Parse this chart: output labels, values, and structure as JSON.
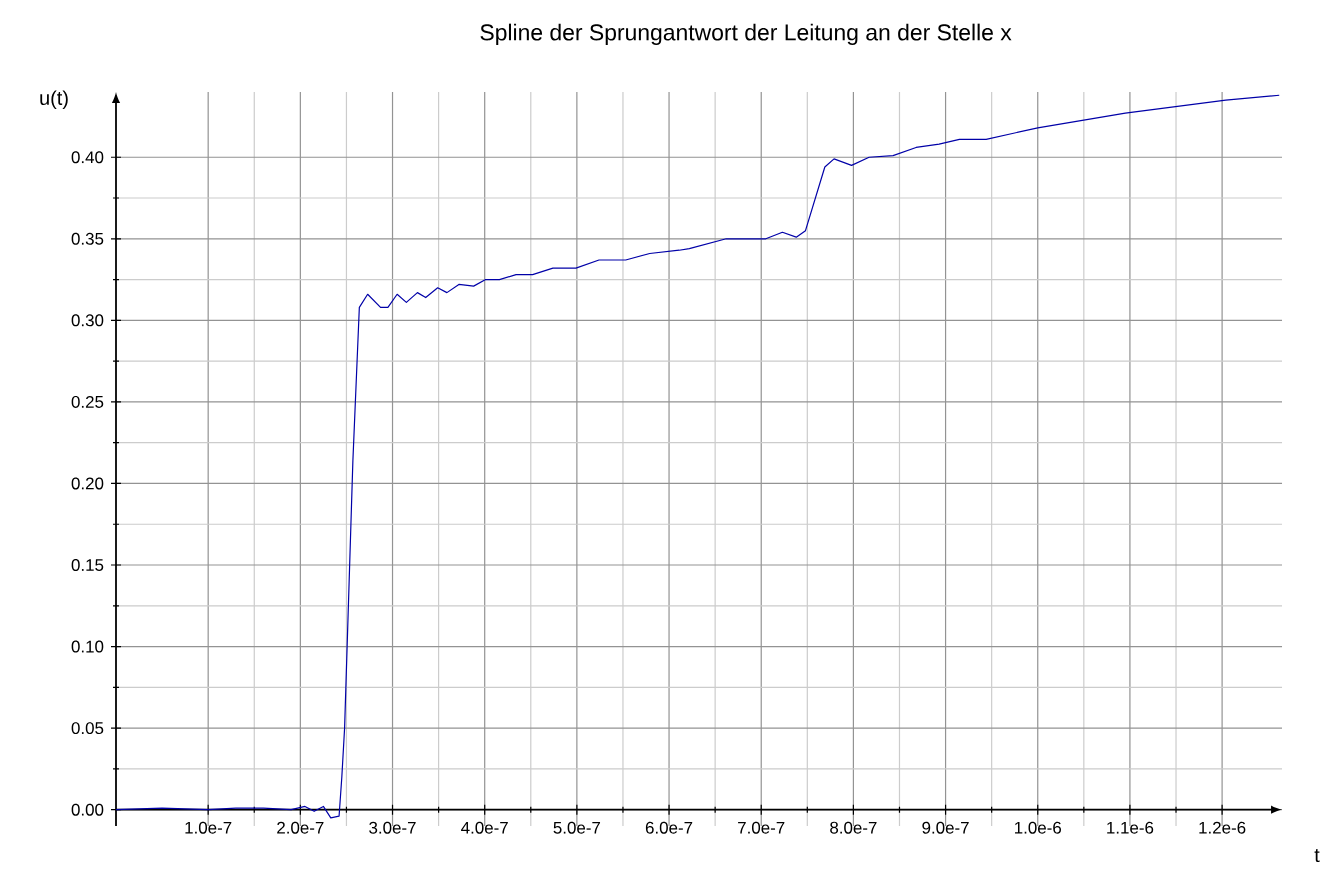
{
  "chart_data": {
    "type": "line",
    "title": "Spline der Sprungantwort der Leitung an der Stelle x",
    "xlabel": "t",
    "ylabel": "u(t)",
    "x": [
      0,
      5e-08,
      1e-07,
      1.3e-07,
      1.6e-07,
      1.9e-07,
      2.05e-07,
      2.15e-07,
      2.25e-07,
      2.33e-07,
      2.42e-07,
      2.45e-07,
      2.48e-07,
      2.57e-07,
      2.64e-07,
      2.73e-07,
      2.87e-07,
      2.95e-07,
      3.05e-07,
      3.15e-07,
      3.27e-07,
      3.36e-07,
      3.49e-07,
      3.59e-07,
      3.72e-07,
      3.88e-07,
      4.01e-07,
      4.16e-07,
      4.34e-07,
      4.52e-07,
      4.74e-07,
      4.99e-07,
      5.24e-07,
      5.53e-07,
      5.79e-07,
      6.11e-07,
      6.22e-07,
      6.62e-07,
      7.05e-07,
      7.23e-07,
      7.38e-07,
      7.48e-07,
      7.69e-07,
      7.79e-07,
      7.98e-07,
      8.17e-07,
      8.43e-07,
      8.68e-07,
      8.93e-07,
      9.15e-07,
      9.44e-07,
      1e-06,
      1.095e-06,
      1.204e-06,
      1.262e-06
    ],
    "series": [
      {
        "color": "#0000a8",
        "values": [
          0,
          0.001,
          0,
          0.001,
          0.001,
          0,
          0.002,
          -0.001,
          0.002,
          -0.005,
          -0.004,
          0.02,
          0.05,
          0.214,
          0.308,
          0.316,
          0.308,
          0.308,
          0.316,
          0.311,
          0.317,
          0.314,
          0.32,
          0.317,
          0.322,
          0.321,
          0.325,
          0.325,
          0.328,
          0.328,
          0.332,
          0.332,
          0.337,
          0.337,
          0.341,
          0.343,
          0.344,
          0.35,
          0.35,
          0.354,
          0.351,
          0.355,
          0.394,
          0.399,
          0.395,
          0.4,
          0.401,
          0.406,
          0.408,
          0.411,
          0.411,
          0.418,
          0.427,
          0.435,
          0.438
        ]
      }
    ],
    "xlim": [
      0,
      1.265e-06
    ],
    "ylim": [
      -0.01,
      0.44
    ],
    "xticks": [
      {
        "value": 1e-07,
        "label": "1.0e-7"
      },
      {
        "value": 2e-07,
        "label": "2.0e-7"
      },
      {
        "value": 3e-07,
        "label": "3.0e-7"
      },
      {
        "value": 4e-07,
        "label": "4.0e-7"
      },
      {
        "value": 5e-07,
        "label": "5.0e-7"
      },
      {
        "value": 6e-07,
        "label": "6.0e-7"
      },
      {
        "value": 7e-07,
        "label": "7.0e-7"
      },
      {
        "value": 8e-07,
        "label": "8.0e-7"
      },
      {
        "value": 9e-07,
        "label": "9.0e-7"
      },
      {
        "value": 1e-06,
        "label": "1.0e-6"
      },
      {
        "value": 1.1e-06,
        "label": "1.1e-6"
      },
      {
        "value": 1.2e-06,
        "label": "1.2e-6"
      }
    ],
    "yticks": [
      {
        "value": 0,
        "label": "0.00"
      },
      {
        "value": 0.05,
        "label": "0.05"
      },
      {
        "value": 0.1,
        "label": "0.10"
      },
      {
        "value": 0.15,
        "label": "0.15"
      },
      {
        "value": 0.2,
        "label": "0.20"
      },
      {
        "value": 0.25,
        "label": "0.25"
      },
      {
        "value": 0.3,
        "label": "0.30"
      },
      {
        "value": 0.35,
        "label": "0.35"
      },
      {
        "value": 0.4,
        "label": "0.40"
      }
    ],
    "grid": true,
    "marker": "none",
    "line_style": "solid"
  }
}
